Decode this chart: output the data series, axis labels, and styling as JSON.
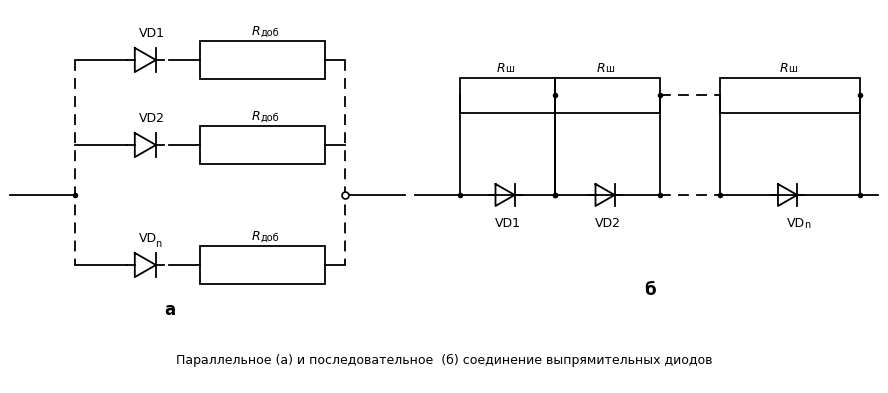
{
  "title": "Параллельное (а) и последовательное  (б) соединение выпрямительных диодов",
  "label_a": "а",
  "label_b": "б",
  "bg_color": "#ffffff",
  "line_color": "#000000",
  "fig_width": 8.88,
  "fig_height": 3.93,
  "dpi": 100,
  "diode_labels_a": [
    "VD1",
    "VD2",
    "VDn"
  ],
  "diode_labels_b": [
    "VD1",
    "VD2",
    "VDn"
  ]
}
